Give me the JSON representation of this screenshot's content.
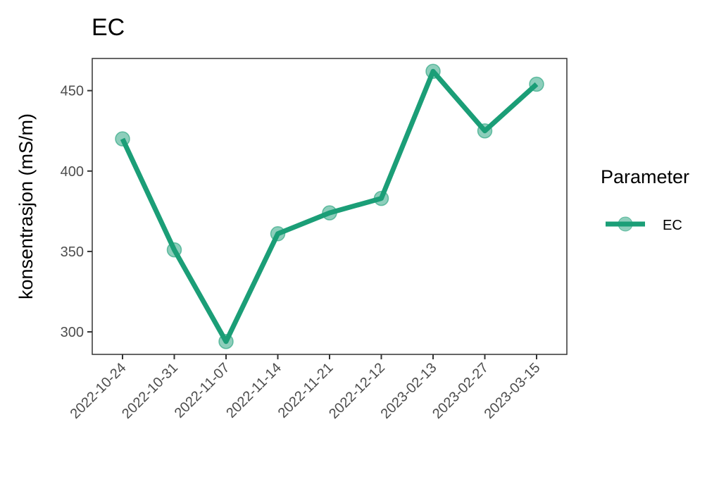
{
  "chart_data": {
    "type": "line",
    "title": "EC",
    "xlabel": "",
    "ylabel": "konsentrasjon (mS/m)",
    "categories": [
      "2022-10-24",
      "2022-10-31",
      "2022-11-07",
      "2022-11-14",
      "2022-11-21",
      "2022-12-12",
      "2023-02-13",
      "2023-02-27",
      "2023-03-15"
    ],
    "series": [
      {
        "name": "EC",
        "values": [
          420,
          351,
          294,
          361,
          374,
          383,
          462,
          425,
          454
        ],
        "color": "#1b9e77"
      }
    ],
    "ylim": [
      286,
      470
    ],
    "yticks": [
      300,
      350,
      400,
      450
    ],
    "grid": false,
    "legend": {
      "title": "Parameter",
      "placement": "right"
    }
  }
}
